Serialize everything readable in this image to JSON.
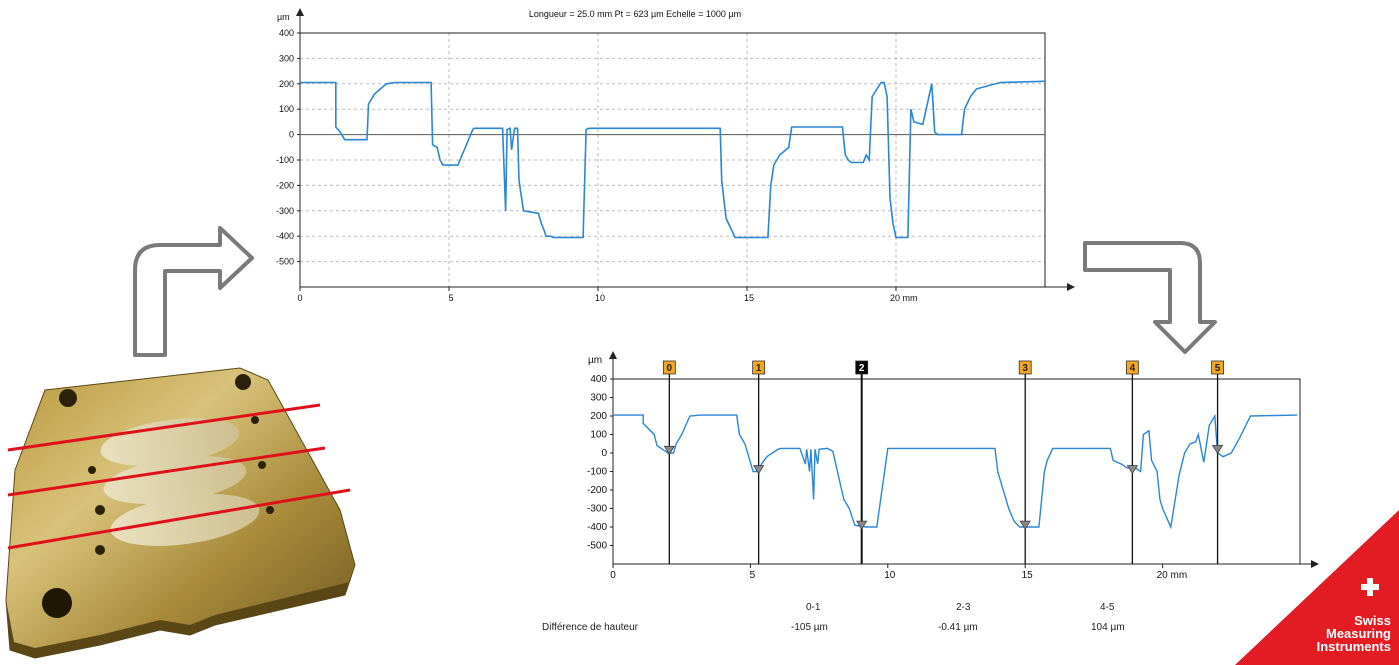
{
  "chart_data": [
    {
      "type": "line",
      "title": "Longueur = 25.0 mm  Pt = 623 µm  Echelle = 1000 µm",
      "xlabel": "mm",
      "ylabel": "µm",
      "xlim": [
        0,
        25
      ],
      "ylim": [
        -600,
        400
      ],
      "xticks": [
        "0",
        "5",
        "10",
        "15",
        "20 mm"
      ],
      "yticks": [
        "400",
        "300",
        "200",
        "100",
        "0",
        "-100",
        "-200",
        "-300",
        "-400",
        "-500"
      ],
      "grid": true,
      "series": [
        {
          "color": "#2a86d6",
          "x": [
            0,
            1.2,
            1.2,
            1.35,
            1.5,
            1.6,
            1.7,
            1.8,
            2.1,
            2.25,
            2.3,
            2.5,
            2.9,
            3.2,
            4.4,
            4.45,
            4.6,
            4.7,
            4.8,
            5.0,
            5.1,
            5.3,
            5.8,
            5.85,
            6.0,
            6.8,
            6.9,
            6.95,
            7.05,
            7.1,
            7.2,
            7.3,
            7.35,
            7.4,
            7.5,
            8.0,
            8.1,
            8.2,
            8.25,
            8.4,
            8.5,
            9.0,
            9.5,
            9.6,
            9.7,
            10.0,
            14.1,
            14.15,
            14.3,
            14.5,
            14.6,
            15.0,
            15.7,
            15.8,
            15.9,
            16.1,
            16.4,
            16.5,
            16.9,
            18.2,
            18.3,
            18.4,
            18.5,
            18.9,
            19.0,
            19.1,
            19.2,
            19.5,
            19.6,
            19.7,
            19.8,
            19.85,
            19.9,
            20.0,
            20.4,
            20.5,
            20.6,
            20.9,
            21.2,
            21.3,
            21.4,
            21.8,
            22.2,
            22.3,
            22.5,
            22.7,
            23.5,
            25.0
          ],
          "y": [
            205,
            205,
            30,
            10,
            -20,
            -20,
            -20,
            -20,
            -20,
            -20,
            120,
            160,
            200,
            205,
            205,
            -40,
            -50,
            -100,
            -120,
            -120,
            -120,
            -120,
            20,
            25,
            25,
            25,
            -300,
            20,
            25,
            -60,
            25,
            25,
            -180,
            -220,
            -300,
            -310,
            -350,
            -380,
            -400,
            -400,
            -405,
            -405,
            -405,
            20,
            25,
            25,
            25,
            -180,
            -330,
            -380,
            -405,
            -405,
            -405,
            -200,
            -120,
            -80,
            -50,
            30,
            30,
            30,
            -80,
            -100,
            -110,
            -110,
            -80,
            -100,
            150,
            205,
            205,
            150,
            -250,
            -300,
            -350,
            -405,
            -405,
            100,
            50,
            40,
            200,
            10,
            0,
            0,
            0,
            100,
            150,
            180,
            205,
            210
          ]
        }
      ]
    },
    {
      "type": "line",
      "xlabel": "mm",
      "ylabel": "µm",
      "xlim": [
        0,
        25
      ],
      "ylim": [
        -600,
        400
      ],
      "xticks": [
        "0",
        "5",
        "10",
        "15",
        "20 mm"
      ],
      "yticks": [
        "400",
        "300",
        "200",
        "100",
        "0",
        "-100",
        "-200",
        "-300",
        "-400",
        "-500"
      ],
      "grid": false,
      "markers": [
        {
          "label": "0",
          "x": 2.05,
          "y": 15
        },
        {
          "label": "1",
          "x": 5.3,
          "y": -90
        },
        {
          "label": "2",
          "x": 9.05,
          "y": -390
        },
        {
          "label": "3",
          "x": 15.0,
          "y": -390
        },
        {
          "label": "4",
          "x": 18.9,
          "y": -90
        },
        {
          "label": "5",
          "x": 22.0,
          "y": 20
        }
      ],
      "series": [
        {
          "color": "#2a86d6",
          "x": [
            0,
            1.1,
            1.1,
            1.5,
            1.6,
            1.8,
            2.0,
            2.2,
            2.3,
            2.5,
            2.8,
            3.2,
            4.5,
            4.6,
            4.8,
            5.0,
            5.1,
            5.3,
            5.4,
            5.6,
            6.0,
            6.1,
            6.8,
            7.0,
            7.05,
            7.15,
            7.2,
            7.3,
            7.35,
            7.45,
            7.5,
            7.8,
            8.0,
            8.2,
            8.4,
            8.6,
            8.8,
            9.2,
            9.6,
            10.0,
            13.9,
            14.0,
            14.2,
            14.4,
            14.6,
            14.8,
            15.5,
            15.7,
            15.8,
            16.0,
            16.2,
            18.1,
            18.2,
            18.5,
            18.7,
            19.0,
            19.2,
            19.3,
            19.5,
            19.6,
            19.8,
            19.9,
            20.0,
            20.3,
            20.6,
            20.8,
            21.0,
            21.2,
            21.3,
            21.5,
            21.7,
            21.9,
            22.0,
            22.2,
            22.5,
            22.8,
            23.2,
            24.9
          ],
          "y": [
            205,
            205,
            160,
            100,
            40,
            20,
            0,
            0,
            50,
            100,
            200,
            205,
            205,
            100,
            50,
            -50,
            -100,
            -100,
            -60,
            -20,
            20,
            25,
            25,
            -60,
            20,
            -100,
            20,
            -250,
            20,
            -60,
            20,
            25,
            10,
            -120,
            -250,
            -300,
            -390,
            -400,
            -400,
            25,
            25,
            -100,
            -200,
            -300,
            -370,
            -400,
            -400,
            -100,
            -40,
            25,
            25,
            25,
            -40,
            -60,
            -80,
            -80,
            -100,
            100,
            120,
            -40,
            -100,
            -250,
            -300,
            -400,
            -120,
            0,
            50,
            60,
            100,
            -50,
            150,
            200,
            0,
            -20,
            0,
            80,
            200,
            205
          ]
        }
      ]
    }
  ],
  "height_table": {
    "row_label": "Différence de hauteur",
    "columns": [
      {
        "header": "0-1",
        "value": "-105 µm"
      },
      {
        "header": "2-3",
        "value": "-0.41 µm"
      },
      {
        "header": "4-5",
        "value": "104 µm"
      }
    ]
  },
  "logo": {
    "line1": "Swiss",
    "line2": "Measuring",
    "line3": "Instruments"
  },
  "colors": {
    "trace": "#2a86d6",
    "marker_box": "#f5a623",
    "marker_box_selected": "#000000",
    "laser_line": "#e0101a",
    "logo_red": "#e31b23",
    "arrow": "#7a7a7a"
  }
}
